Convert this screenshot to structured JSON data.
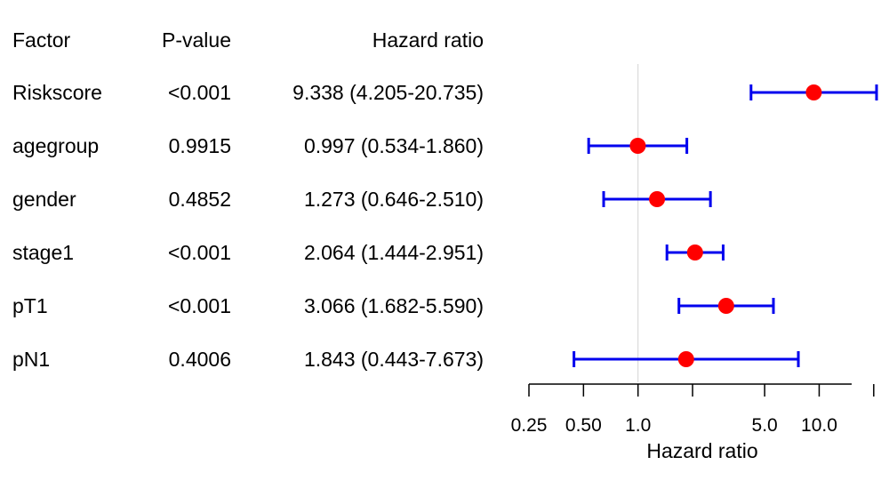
{
  "table": {
    "headers": {
      "factor": "Factor",
      "pvalue": "P-value",
      "hr": "Hazard ratio"
    },
    "rows": [
      {
        "factor": "Riskscore",
        "pvalue": "<0.001",
        "hr_text": "9.338 (4.205-20.735)"
      },
      {
        "factor": "agegroup",
        "pvalue": "0.9915",
        "hr_text": "0.997 (0.534-1.860)"
      },
      {
        "factor": "gender",
        "pvalue": "0.4852",
        "hr_text": "1.273 (0.646-2.510)"
      },
      {
        "factor": "stage1",
        "pvalue": "<0.001",
        "hr_text": "2.064 (1.444-2.951)"
      },
      {
        "factor": "pT1",
        "pvalue": "<0.001",
        "hr_text": "3.066 (1.682-5.590)"
      },
      {
        "factor": "pN1",
        "pvalue": "0.4006",
        "hr_text": "1.843 (0.443-7.673)"
      }
    ]
  },
  "chart_data": {
    "type": "scatter",
    "subtype": "forest-plot",
    "x_scale": "log",
    "xlabel": "Hazard ratio",
    "xlim": [
      0.25,
      20.735
    ],
    "x_ticks": [
      0.25,
      0.5,
      1.0,
      5.0,
      10.0
    ],
    "x_tick_labels": [
      "0.25",
      "0.50",
      "1.0",
      "5.0",
      "10.0"
    ],
    "reference_line": 1.0,
    "categories": [
      "Riskscore",
      "agegroup",
      "gender",
      "stage1",
      "pT1",
      "pN1"
    ],
    "series": [
      {
        "values": [
          9.338,
          0.997,
          1.273,
          2.064,
          3.066,
          1.843
        ],
        "lower": [
          4.205,
          0.534,
          0.646,
          1.444,
          1.682,
          0.443
        ],
        "upper": [
          20.735,
          1.86,
          2.51,
          2.951,
          5.59,
          7.673
        ]
      }
    ],
    "colors": {
      "point": "#ff0000",
      "ci": "#0000ee",
      "reference": "#d3d3d3",
      "axis": "#000000"
    }
  }
}
